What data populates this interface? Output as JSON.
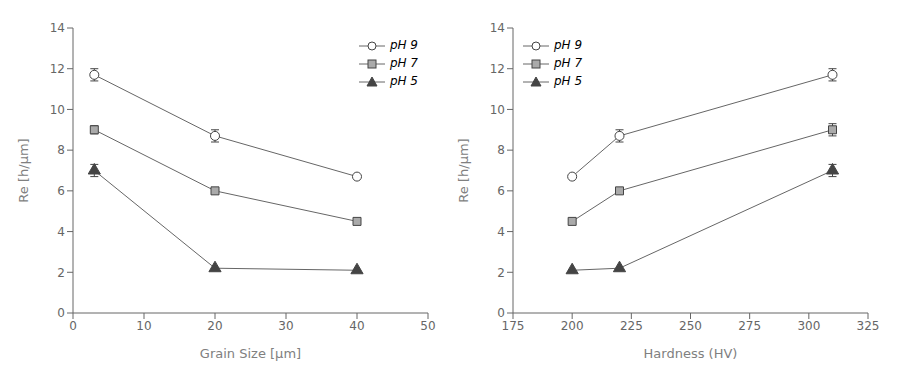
{
  "chart_data": [
    {
      "type": "line",
      "xlabel": "Grain Size [μm]",
      "ylabel": "Re [h/μm]",
      "xlim": [
        0,
        50
      ],
      "ylim": [
        0,
        14
      ],
      "xticks": [
        0,
        10,
        20,
        30,
        40,
        50
      ],
      "yticks": [
        0,
        2,
        4,
        6,
        8,
        10,
        12,
        14
      ],
      "legend": "upper right",
      "color": "#666666",
      "series": [
        {
          "name": "pH 9",
          "x": [
            3,
            20,
            40
          ],
          "values": [
            11.7,
            8.7,
            6.7
          ],
          "yerr": [
            0.3,
            0.3,
            0.0
          ],
          "marker": "circle",
          "color": "white"
        },
        {
          "name": "pH 7",
          "x": [
            3,
            20,
            40
          ],
          "values": [
            9.0,
            6.0,
            4.5
          ],
          "yerr": [
            0.2,
            0.0,
            0.0
          ],
          "marker": "square",
          "color": "#aaaaaa"
        },
        {
          "name": "pH 5",
          "x": [
            3,
            20,
            40
          ],
          "values": [
            7.0,
            2.2,
            2.1
          ],
          "yerr": [
            0.3,
            0.0,
            0.0
          ],
          "marker": "triangle",
          "color": "#444444"
        }
      ]
    },
    {
      "type": "line",
      "xlabel": "Hardness (HV)",
      "ylabel": "Re [h/μm]",
      "xlim": [
        175,
        325
      ],
      "ylim": [
        0,
        14
      ],
      "xticks": [
        175,
        200,
        225,
        250,
        275,
        300,
        325
      ],
      "yticks": [
        0,
        2,
        4,
        6,
        8,
        10,
        12,
        14
      ],
      "legend": "upper left",
      "color": "#666666",
      "series": [
        {
          "name": "pH 9",
          "x": [
            200,
            220,
            310
          ],
          "values": [
            6.7,
            8.7,
            11.7
          ],
          "yerr": [
            0.0,
            0.3,
            0.3
          ],
          "marker": "circle",
          "color": "white"
        },
        {
          "name": "pH 7",
          "x": [
            200,
            220,
            310
          ],
          "values": [
            4.5,
            6.0,
            9.0
          ],
          "yerr": [
            0.0,
            0.0,
            0.3
          ],
          "marker": "square",
          "color": "#aaaaaa"
        },
        {
          "name": "pH 5",
          "x": [
            200,
            220,
            310
          ],
          "values": [
            2.1,
            2.2,
            7.0
          ],
          "yerr": [
            0.0,
            0.0,
            0.3
          ],
          "marker": "triangle",
          "color": "#444444"
        }
      ]
    }
  ]
}
